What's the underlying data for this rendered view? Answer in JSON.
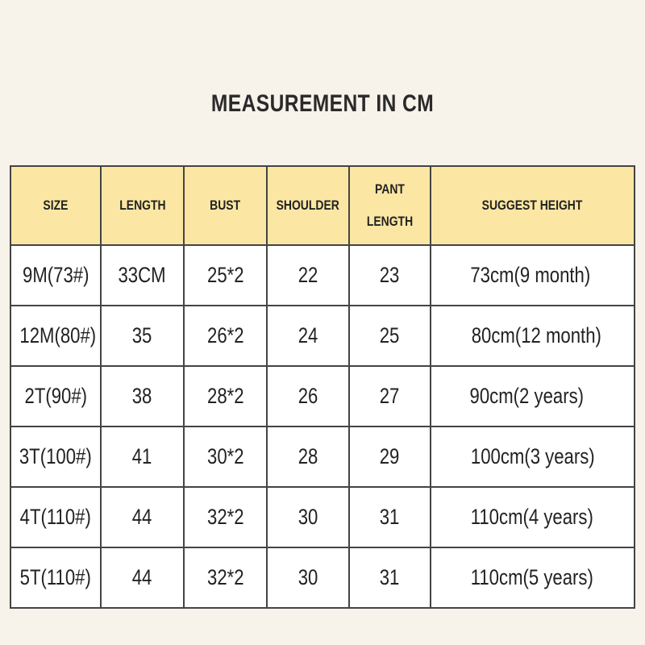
{
  "title": "MEASUREMENT IN CM",
  "table": {
    "header": [
      "SIZE",
      "LENGTH",
      "BUST",
      "SHOULDER",
      "PANT LENGTH",
      "SUGGEST HEIGHT"
    ],
    "rows": [
      [
        "9M(73#)",
        "33CM",
        "25*2",
        "22",
        "23",
        "73cm(9 month)"
      ],
      [
        "12M(80#)",
        "35",
        "26*2",
        "24",
        "25",
        "80cm(12 month)"
      ],
      [
        "2T(90#)",
        "38",
        "28*2",
        "26",
        "27",
        "90cm(2 years)"
      ],
      [
        "3T(100#)",
        "41",
        "30*2",
        "28",
        "29",
        "100cm(3 years)"
      ],
      [
        "4T(110#)",
        "44",
        "32*2",
        "30",
        "31",
        "110cm(4 years)"
      ],
      [
        "5T(110#)",
        "44",
        "32*2",
        "30",
        "31",
        "110cm(5 years)"
      ]
    ]
  }
}
